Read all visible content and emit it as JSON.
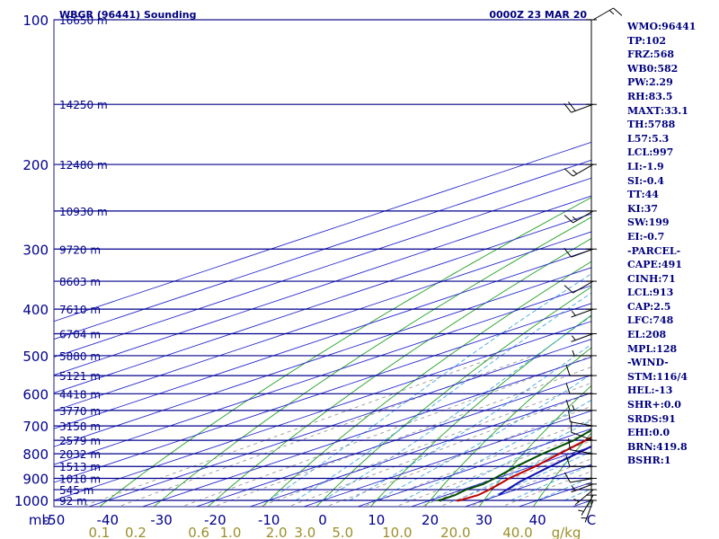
{
  "header": {
    "station": "WBGR (96441) Sounding",
    "time": "0000Z 23 MAR 20"
  },
  "chart_data": {
    "type": "line",
    "chart_kind": "Skew-T log-P sounding diagram",
    "pressure_axis": {
      "label": "mb",
      "scale": "log",
      "range_hpa": [
        1000,
        100
      ],
      "ticks": [
        {
          "p": 100,
          "label": "100"
        },
        {
          "p": 200,
          "label": "200"
        },
        {
          "p": 300,
          "label": "300"
        },
        {
          "p": 400,
          "label": "400"
        },
        {
          "p": 500,
          "label": "500"
        },
        {
          "p": 600,
          "label": "600"
        },
        {
          "p": 700,
          "label": "700"
        },
        {
          "p": 800,
          "label": "800"
        },
        {
          "p": 900,
          "label": "900"
        },
        {
          "p": 1000,
          "label": "1000"
        }
      ]
    },
    "temperature_axis": {
      "unit": "C",
      "range_c": [
        -50,
        50
      ],
      "ticks": [
        {
          "t": -50,
          "label": "-50"
        },
        {
          "t": -40,
          "label": "-40"
        },
        {
          "t": -30,
          "label": "-30"
        },
        {
          "t": -20,
          "label": "-20"
        },
        {
          "t": -10,
          "label": "-10"
        },
        {
          "t": 0,
          "label": "0"
        },
        {
          "t": 10,
          "label": "10"
        },
        {
          "t": 20,
          "label": "20"
        },
        {
          "t": 30,
          "label": "30"
        },
        {
          "t": 40,
          "label": "40"
        },
        {
          "t": 50,
          "label": "C"
        }
      ]
    },
    "height_levels": [
      {
        "p": 100,
        "label": "16650 m"
      },
      {
        "p": 150,
        "label": "14250 m"
      },
      {
        "p": 200,
        "label": "12480 m"
      },
      {
        "p": 250,
        "label": "10930 m"
      },
      {
        "p": 300,
        "label": "9720 m"
      },
      {
        "p": 350,
        "label": "8603 m"
      },
      {
        "p": 400,
        "label": "7610 m"
      },
      {
        "p": 450,
        "label": "6704 m"
      },
      {
        "p": 500,
        "label": "5880 m"
      },
      {
        "p": 550,
        "label": "5121 m"
      },
      {
        "p": 600,
        "label": "4418 m"
      },
      {
        "p": 650,
        "label": "3770 m"
      },
      {
        "p": 700,
        "label": "3158 m"
      },
      {
        "p": 750,
        "label": "2579 m"
      },
      {
        "p": 800,
        "label": "2032 m"
      },
      {
        "p": 850,
        "label": "1513 m"
      },
      {
        "p": 900,
        "label": "1018 m"
      },
      {
        "p": 950,
        "label": "545 m"
      },
      {
        "p": 1000,
        "label": "92 m"
      }
    ],
    "mixing_ratio_axis": {
      "unit": "g/kg",
      "ticks": [
        {
          "w": 0.1,
          "label": "0.1"
        },
        {
          "w": 0.2,
          "label": "0.2"
        },
        {
          "w": 0.6,
          "label": "0.6"
        },
        {
          "w": 1.0,
          "label": "1.0"
        },
        {
          "w": 2.0,
          "label": "2.0"
        },
        {
          "w": 3.0,
          "label": "3.0"
        },
        {
          "w": 5.0,
          "label": "5.0"
        },
        {
          "w": 10.0,
          "label": "10.0"
        },
        {
          "w": 20.0,
          "label": "20.0"
        },
        {
          "w": 40.0,
          "label": "40.0"
        }
      ]
    },
    "series": [
      {
        "role": "temperature",
        "color": "#c00000",
        "points": [
          {
            "p": 1002,
            "t": 25.2
          },
          {
            "p": 1000,
            "t": 25.5
          },
          {
            "p": 975,
            "t": 26.0
          },
          {
            "p": 950,
            "t": 25.0
          },
          {
            "p": 925,
            "t": 23.8
          },
          {
            "p": 900,
            "t": 22.4
          },
          {
            "p": 850,
            "t": 20.6
          },
          {
            "p": 800,
            "t": 18.0
          },
          {
            "p": 750,
            "t": 15.4
          },
          {
            "p": 700,
            "t": 12.6
          },
          {
            "p": 650,
            "t": 9.4
          },
          {
            "p": 600,
            "t": 6.2
          },
          {
            "p": 550,
            "t": 2.2
          },
          {
            "p": 500,
            "t": -2.8
          },
          {
            "p": 450,
            "t": -8.2
          },
          {
            "p": 425,
            "t": -11.6
          },
          {
            "p": 400,
            "t": -13.8
          },
          {
            "p": 350,
            "t": -21.2
          },
          {
            "p": 300,
            "t": -28.8
          },
          {
            "p": 250,
            "t": -38.4
          },
          {
            "p": 200,
            "t": -48.8
          },
          {
            "p": 150,
            "t": -62.5
          },
          {
            "p": 125,
            "t": -72.5
          },
          {
            "p": 108,
            "t": -78.5
          },
          {
            "p": 100,
            "t": -79.8
          }
        ]
      },
      {
        "role": "dewpoint",
        "color": "#004d00",
        "points": [
          {
            "p": 1002,
            "t": 22.3
          },
          {
            "p": 1000,
            "t": 21.7
          },
          {
            "p": 975,
            "t": 21.7
          },
          {
            "p": 950,
            "t": 20.7
          },
          {
            "p": 925,
            "t": 20.8
          },
          {
            "p": 900,
            "t": 19.7
          },
          {
            "p": 850,
            "t": 17.1
          },
          {
            "p": 800,
            "t": 14.9
          },
          {
            "p": 750,
            "t": 13.2
          },
          {
            "p": 700,
            "t": 9.7
          },
          {
            "p": 650,
            "t": 6.5
          },
          {
            "p": 600,
            "t": 3.9
          },
          {
            "p": 550,
            "t": -0.2
          },
          {
            "p": 500,
            "t": -3.2
          },
          {
            "p": 450,
            "t": -24.5
          },
          {
            "p": 400,
            "t": -15.2
          },
          {
            "p": 375,
            "t": -28.5
          },
          {
            "p": 350,
            "t": -19.0
          },
          {
            "p": 325,
            "t": -31.5
          },
          {
            "p": 300,
            "t": -31.0
          },
          {
            "p": 250,
            "t": -37.0
          },
          {
            "p": 200,
            "t": -59.0
          },
          {
            "p": 150,
            "t": -68.0
          },
          {
            "p": 108,
            "t": -83.5
          },
          {
            "p": 100,
            "t": -85.0
          }
        ]
      },
      {
        "role": "parcel",
        "color": "#1010b0",
        "points": [
          {
            "p": 975,
            "t": 29.8
          },
          {
            "p": 950,
            "t": 28.3
          },
          {
            "p": 913,
            "t": 26.2
          },
          {
            "p": 850,
            "t": 23.4
          },
          {
            "p": 800,
            "t": 21.2
          },
          {
            "p": 748,
            "t": 18.6
          },
          {
            "p": 700,
            "t": 16.0
          },
          {
            "p": 600,
            "t": 9.6
          },
          {
            "p": 500,
            "t": 1.6
          },
          {
            "p": 400,
            "t": -9.2
          },
          {
            "p": 300,
            "t": -24.8
          },
          {
            "p": 250,
            "t": -35.2
          },
          {
            "p": 208,
            "t": -46.8
          },
          {
            "p": 150,
            "t": -65.5
          },
          {
            "p": 128,
            "t": -76.0
          },
          {
            "p": 112,
            "t": -84.5
          }
        ]
      }
    ],
    "wind_barbs": [
      {
        "p": 1000,
        "dir": 200,
        "spd": 5
      },
      {
        "p": 975,
        "dir": 210,
        "spd": 5
      },
      {
        "p": 950,
        "dir": 230,
        "spd": 5
      },
      {
        "p": 925,
        "dir": 250,
        "spd": 5
      },
      {
        "p": 900,
        "dir": 260,
        "spd": 10
      },
      {
        "p": 850,
        "dir": 270,
        "spd": 10
      },
      {
        "p": 800,
        "dir": 280,
        "spd": 10
      },
      {
        "p": 750,
        "dir": 290,
        "spd": 10
      },
      {
        "p": 700,
        "dir": 280,
        "spd": 10
      },
      {
        "p": 650,
        "dir": 270,
        "spd": 15
      },
      {
        "p": 600,
        "dir": 270,
        "spd": 10
      },
      {
        "p": 550,
        "dir": 270,
        "spd": 10
      },
      {
        "p": 500,
        "dir": 270,
        "spd": 5
      },
      {
        "p": 450,
        "dir": 250,
        "spd": 5
      },
      {
        "p": 400,
        "dir": 250,
        "spd": 5
      },
      {
        "p": 350,
        "dir": 240,
        "spd": 10
      },
      {
        "p": 300,
        "dir": 250,
        "spd": 10
      },
      {
        "p": 250,
        "dir": 240,
        "spd": 15
      },
      {
        "p": 200,
        "dir": 240,
        "spd": 15
      },
      {
        "p": 150,
        "dir": 250,
        "spd": 20
      },
      {
        "p": 100,
        "dir": 60,
        "spd": 15
      }
    ]
  },
  "indices": [
    "WMO:96441",
    "TP:102",
    "FRZ:568",
    "WB0:582",
    "PW:2.29",
    "RH:83.5",
    "MAXT:33.1",
    "TH:5788",
    "L57:5.3",
    "LCL:997",
    "LI:-1.9",
    "SI:-0.4",
    "TT:44",
    "KI:37",
    "SW:199",
    "EI:-0.7",
    "-PARCEL-",
    "CAPE:491",
    "CINH:71",
    "LCL:913",
    "CAP:2.5",
    "LFC:748",
    "EL:208",
    "MPL:128",
    "-WIND-",
    "STM:116/4",
    "HEL:-13",
    "SHR+:0.0",
    "SRDS:91",
    "EHI:0.0",
    "BRN:419.8",
    "BSHR:1"
  ],
  "colors": {
    "isobar": "#00008b",
    "frame": "#1a1a8c",
    "isotherm": "#2a2ad0",
    "dry_adiabat": "#22a022",
    "moist_adiabat": "#40a8e0",
    "mixing_ratio": "#8c8c8c",
    "background": "#ffffff"
  }
}
